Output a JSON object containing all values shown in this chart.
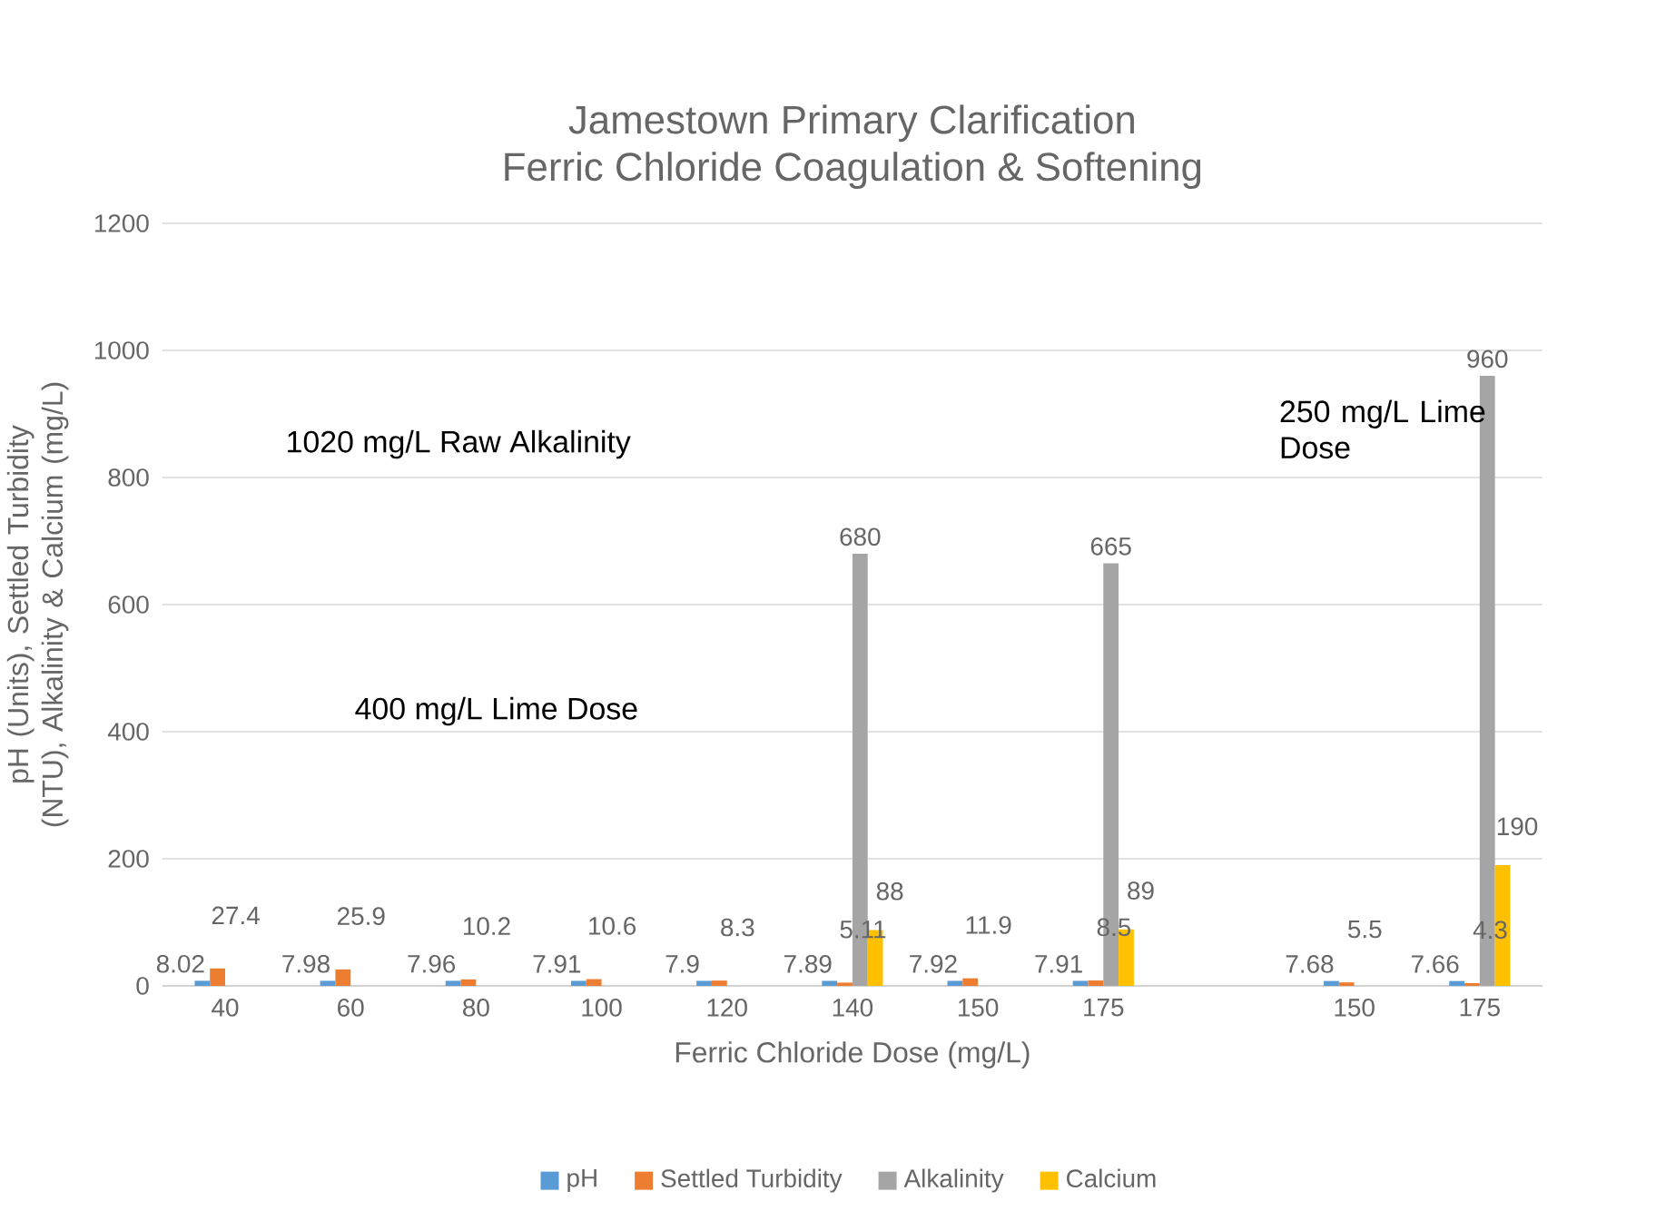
{
  "chart_data": {
    "type": "bar",
    "title": "Jamestown Primary Clarification\nFerric Chloride Coagulation & Softening",
    "xlabel": "Ferric Chloride Dose (mg/L)",
    "ylabel": "pH (Units), Settled Turbidity (NTU), Alkalinity & Calcium (mg/L)",
    "categories": [
      "40",
      "60",
      "80",
      "100",
      "120",
      "140",
      "150",
      "175",
      null,
      "150",
      "175"
    ],
    "series": [
      {
        "name": "pH",
        "color": "#5b9bd5",
        "values": [
          8.02,
          7.98,
          7.96,
          7.91,
          7.9,
          7.89,
          7.92,
          7.91,
          null,
          7.68,
          7.66
        ]
      },
      {
        "name": "Settled Turbidity",
        "color": "#ed7d31",
        "values": [
          27.4,
          25.9,
          10.2,
          10.6,
          8.3,
          5.11,
          11.9,
          8.5,
          null,
          5.5,
          4.3
        ]
      },
      {
        "name": "Alkalinity",
        "color": "#a5a5a5",
        "values": [
          null,
          null,
          null,
          null,
          null,
          680,
          null,
          665,
          null,
          null,
          960
        ]
      },
      {
        "name": "Calcium",
        "color": "#ffc000",
        "values": [
          null,
          null,
          null,
          null,
          null,
          88,
          null,
          89,
          null,
          null,
          190
        ]
      }
    ],
    "ylim": [
      0,
      1200
    ],
    "yticks": [
      0,
      200,
      400,
      600,
      800,
      1000,
      1200
    ],
    "grid": "y",
    "legend": "bottom",
    "data_labels": true,
    "annotations": [
      "1020 mg/L Raw Alkalinity",
      "400 mg/L Lime Dose",
      "250 mg/L Lime Dose"
    ]
  }
}
